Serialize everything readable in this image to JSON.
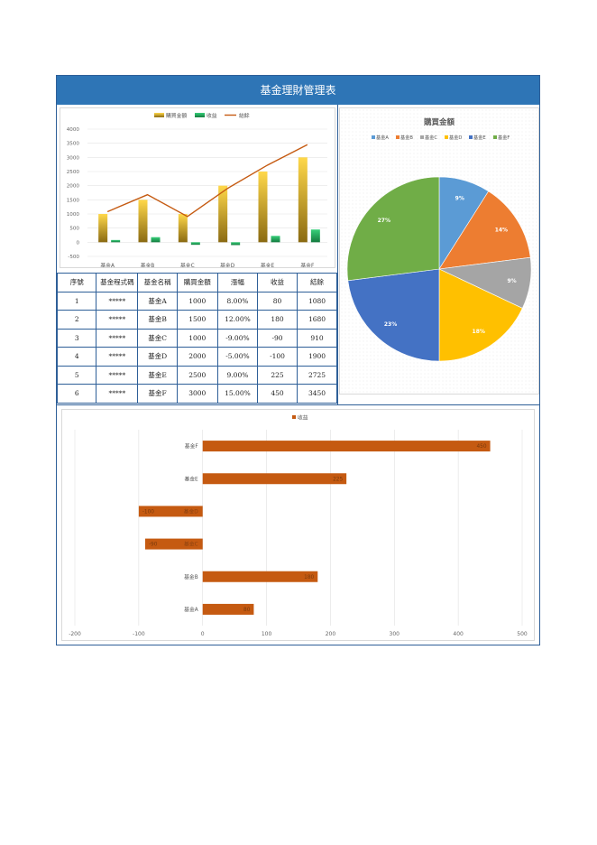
{
  "title": "基金理財管理表",
  "combo_chart": {
    "legend": [
      "購買金額",
      "收益",
      "結餘"
    ],
    "colors": {
      "purchase": "#d4a827",
      "profit": "#1e9e56",
      "balance": "#c55a11"
    },
    "chart_data": {
      "type": "bar",
      "categories": [
        "基金A",
        "基金B",
        "基金C",
        "基金D",
        "基金E",
        "基金F"
      ],
      "series": [
        {
          "name": "購買金額",
          "type": "bar",
          "values": [
            1000,
            1500,
            1000,
            2000,
            2500,
            3000
          ]
        },
        {
          "name": "收益",
          "type": "bar",
          "values": [
            80,
            180,
            -90,
            -100,
            225,
            450
          ]
        },
        {
          "name": "結餘",
          "type": "line",
          "values": [
            1080,
            1680,
            910,
            1900,
            2725,
            3450
          ]
        }
      ],
      "yticks": [
        4000,
        3500,
        3000,
        2500,
        2000,
        1500,
        1000,
        500,
        0,
        -500
      ],
      "ylim": [
        -500,
        4000
      ],
      "grid": true,
      "legend_position": "top"
    }
  },
  "table": {
    "headers": [
      "序號",
      "基金程式碼",
      "基金名稱",
      "購買金額",
      "漲幅",
      "收益",
      "結餘"
    ],
    "rows": [
      [
        "1",
        "*****",
        "基金A",
        "1000",
        "8.00%",
        "80",
        "1080"
      ],
      [
        "2",
        "*****",
        "基金B",
        "1500",
        "12.00%",
        "180",
        "1680"
      ],
      [
        "3",
        "*****",
        "基金C",
        "1000",
        "-9.00%",
        "-90",
        "910"
      ],
      [
        "4",
        "*****",
        "基金D",
        "2000",
        "-5.00%",
        "-100",
        "1900"
      ],
      [
        "5",
        "*****",
        "基金E",
        "2500",
        "9.00%",
        "225",
        "2725"
      ],
      [
        "6",
        "*****",
        "基金F",
        "3000",
        "15.00%",
        "450",
        "3450"
      ]
    ]
  },
  "pie_chart": {
    "chart_data": {
      "type": "pie",
      "title": "購買金額",
      "labels": [
        "基金A",
        "基金B",
        "基金C",
        "基金D",
        "基金E",
        "基金F"
      ],
      "values": [
        9,
        14,
        9,
        18,
        23,
        27
      ],
      "value_labels": [
        "9%",
        "14%",
        "9%",
        "18%",
        "23%",
        "27%"
      ],
      "colors": [
        "#5b9bd5",
        "#ed7d31",
        "#a5a5a5",
        "#ffc000",
        "#4472c4",
        "#70ad47"
      ],
      "legend_position": "top"
    }
  },
  "hbar_chart": {
    "chart_data": {
      "type": "bar",
      "orientation": "horizontal",
      "categories": [
        "基金F",
        "基金E",
        "基金D",
        "基金C",
        "基金B",
        "基金A"
      ],
      "series": [
        {
          "name": "收益",
          "values": [
            450,
            225,
            -100,
            -90,
            180,
            80
          ]
        }
      ],
      "xticks": [
        -200,
        -100,
        0,
        100,
        200,
        300,
        400,
        500
      ],
      "xlim": [
        -200,
        500
      ],
      "color": "#c55a11",
      "grid": true,
      "legend_position": "top"
    }
  }
}
